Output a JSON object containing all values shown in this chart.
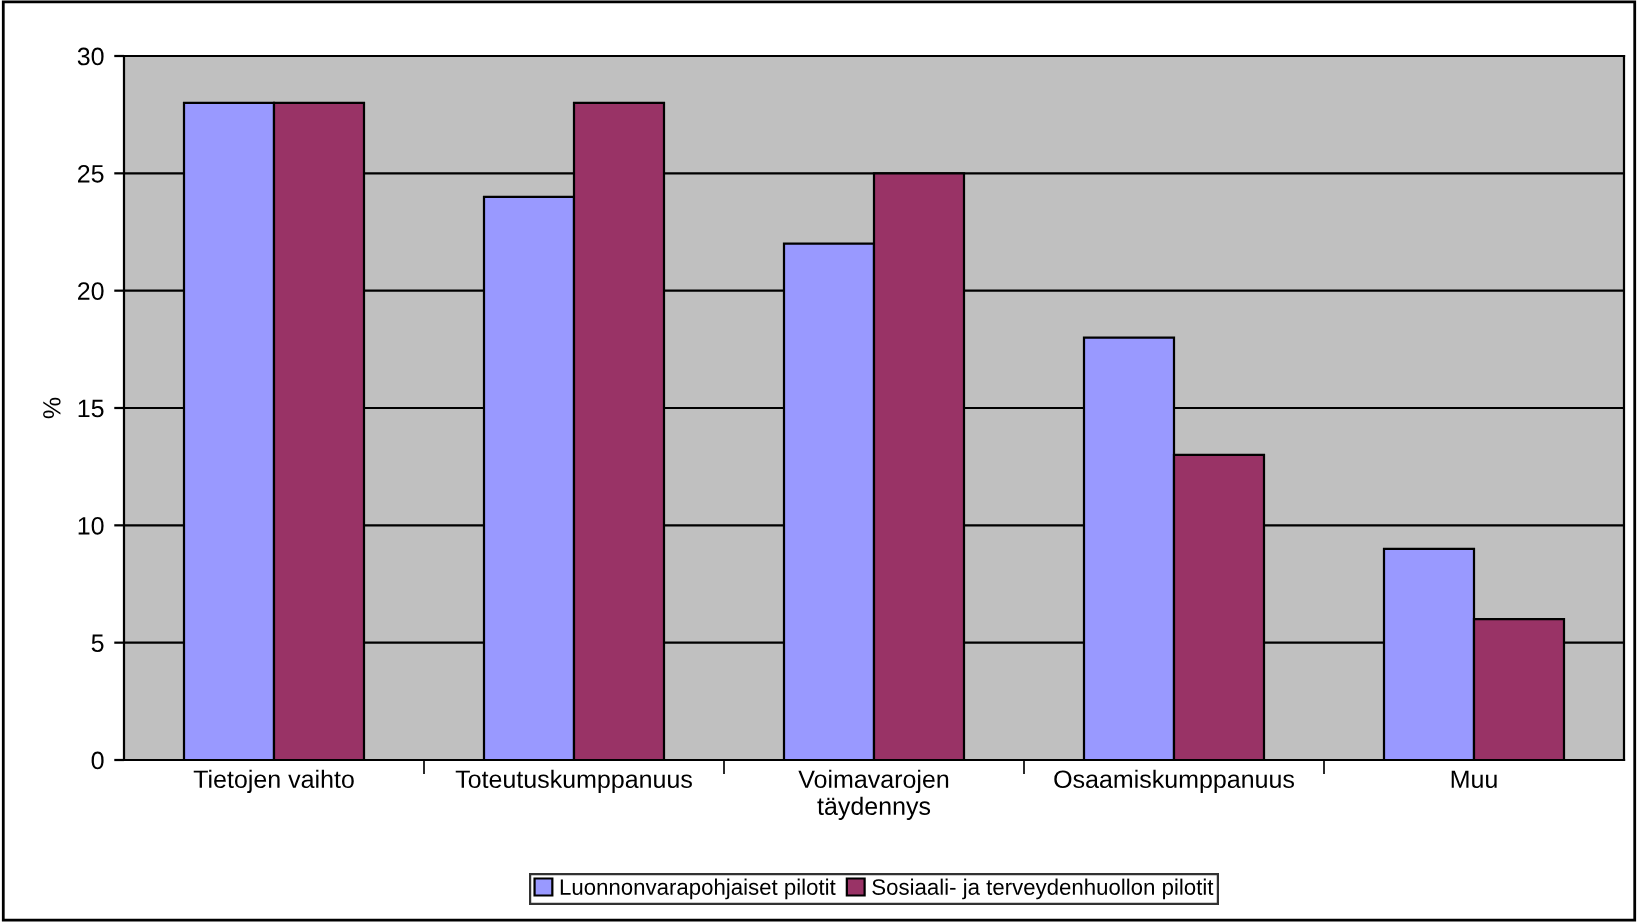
{
  "chart_data": {
    "type": "bar",
    "ylabel": "%",
    "categories": [
      "Tietojen vaihto",
      "Toteutuskumppanuus",
      "Voimavarojen\ntäydennys",
      "Osaamiskumppanuus",
      "Muu"
    ],
    "series": [
      {
        "name": "Luonnonvarapohjaiset pilotit",
        "color": "#9999ff",
        "values": [
          28,
          24,
          22,
          18,
          9
        ]
      },
      {
        "name": "Sosiaali- ja terveydenhuollon pilotit",
        "color": "#993366",
        "values": [
          28,
          28,
          25,
          13,
          6
        ]
      }
    ],
    "ylim": [
      0,
      30
    ],
    "yticks": [
      0,
      5,
      10,
      15,
      20,
      25,
      30
    ],
    "grid": "y",
    "legend": "bottom"
  }
}
